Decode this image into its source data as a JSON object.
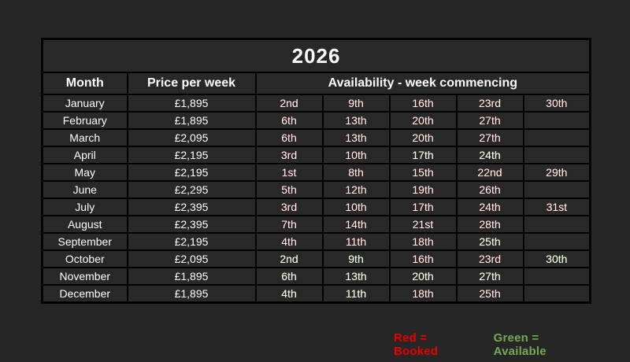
{
  "table": {
    "title": "2026",
    "headers": {
      "month": "Month",
      "price": "Price per week",
      "availability": "Availability - week commencing"
    },
    "rows": [
      {
        "month": "January",
        "price": "£1,895",
        "weeks": [
          {
            "label": "2nd",
            "status": "booked"
          },
          {
            "label": "9th",
            "status": "booked"
          },
          {
            "label": "16th",
            "status": "booked"
          },
          {
            "label": "23rd",
            "status": "booked"
          },
          {
            "label": "30th",
            "status": "booked"
          }
        ]
      },
      {
        "month": "February",
        "price": "£1,895",
        "weeks": [
          {
            "label": "6th",
            "status": "booked"
          },
          {
            "label": "13th",
            "status": "booked"
          },
          {
            "label": "20th",
            "status": "booked"
          },
          {
            "label": "27th",
            "status": "booked"
          },
          {
            "label": "",
            "status": "none"
          }
        ]
      },
      {
        "month": "March",
        "price": "£2,095",
        "weeks": [
          {
            "label": "6th",
            "status": "booked"
          },
          {
            "label": "13th",
            "status": "booked"
          },
          {
            "label": "20th",
            "status": "booked"
          },
          {
            "label": "27th",
            "status": "booked"
          },
          {
            "label": "",
            "status": "none"
          }
        ]
      },
      {
        "month": "April",
        "price": "£2,195",
        "weeks": [
          {
            "label": "3rd",
            "status": "booked"
          },
          {
            "label": "10th",
            "status": "booked"
          },
          {
            "label": "17th",
            "status": "available"
          },
          {
            "label": "24th",
            "status": "available"
          },
          {
            "label": "",
            "status": "none"
          }
        ]
      },
      {
        "month": "May",
        "price": "£2,195",
        "weeks": [
          {
            "label": "1st",
            "status": "booked"
          },
          {
            "label": "8th",
            "status": "booked"
          },
          {
            "label": "15th",
            "status": "booked"
          },
          {
            "label": "22nd",
            "status": "booked"
          },
          {
            "label": "29th",
            "status": "booked"
          }
        ]
      },
      {
        "month": "June",
        "price": "£2,295",
        "weeks": [
          {
            "label": "5th",
            "status": "booked"
          },
          {
            "label": "12th",
            "status": "booked"
          },
          {
            "label": "19th",
            "status": "booked"
          },
          {
            "label": "26th",
            "status": "booked"
          },
          {
            "label": "",
            "status": "none"
          }
        ]
      },
      {
        "month": "July",
        "price": "£2,395",
        "weeks": [
          {
            "label": "3rd",
            "status": "booked"
          },
          {
            "label": "10th",
            "status": "booked"
          },
          {
            "label": "17th",
            "status": "booked"
          },
          {
            "label": "24th",
            "status": "booked"
          },
          {
            "label": "31st",
            "status": "booked"
          }
        ]
      },
      {
        "month": "August",
        "price": "£2,395",
        "weeks": [
          {
            "label": "7th",
            "status": "booked"
          },
          {
            "label": "14th",
            "status": "booked"
          },
          {
            "label": "21st",
            "status": "booked"
          },
          {
            "label": "28th",
            "status": "booked"
          },
          {
            "label": "",
            "status": "none"
          }
        ]
      },
      {
        "month": "September",
        "price": "£2,195",
        "weeks": [
          {
            "label": "4th",
            "status": "booked"
          },
          {
            "label": "11th",
            "status": "booked"
          },
          {
            "label": "18th",
            "status": "booked"
          },
          {
            "label": "25th",
            "status": "available"
          },
          {
            "label": "",
            "status": "none"
          }
        ]
      },
      {
        "month": "October",
        "price": "£2,095",
        "weeks": [
          {
            "label": "2nd",
            "status": "available"
          },
          {
            "label": "9th",
            "status": "available"
          },
          {
            "label": "16th",
            "status": "booked"
          },
          {
            "label": "23rd",
            "status": "booked"
          },
          {
            "label": "30th",
            "status": "available"
          }
        ]
      },
      {
        "month": "November",
        "price": "£1,895",
        "weeks": [
          {
            "label": "6th",
            "status": "available"
          },
          {
            "label": "13th",
            "status": "available"
          },
          {
            "label": "20th",
            "status": "available"
          },
          {
            "label": "27th",
            "status": "available"
          },
          {
            "label": "",
            "status": "none"
          }
        ]
      },
      {
        "month": "December",
        "price": "£1,895",
        "weeks": [
          {
            "label": "4th",
            "status": "available"
          },
          {
            "label": "11th",
            "status": "available"
          },
          {
            "label": "18th",
            "status": "booked"
          },
          {
            "label": "25th",
            "status": "booked"
          },
          {
            "label": "",
            "status": "none"
          }
        ]
      }
    ]
  },
  "legend": {
    "red": "Red = Booked",
    "green": "Green = Available"
  },
  "colors": {
    "booked": "#ff0000",
    "available": "#92d050",
    "empty_cell": "#3f3f3f",
    "background": "#262626",
    "legend_red": "#e80000",
    "legend_green": "#73aa52"
  }
}
